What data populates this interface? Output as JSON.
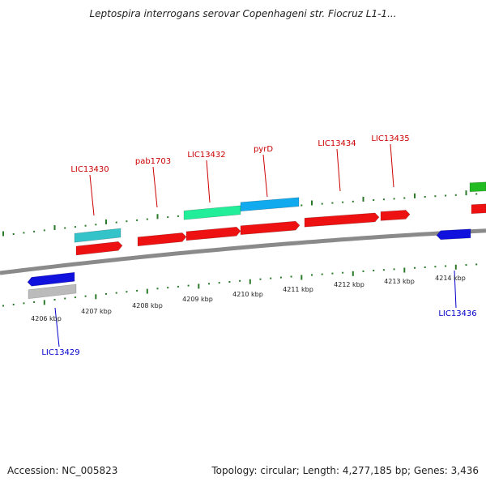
{
  "title": "Leptospira interrogans serovar Copenhageni str. Fiocruz L1-1...",
  "footer": {
    "accession": "Accession: NC_005823",
    "topology": "Topology: circular; Length: 4,277,185 bp; Genes: 3,436"
  },
  "colors": {
    "backbone": "#8a8a8a",
    "tick": "#2a7a2a",
    "forward_label": "#cc0000",
    "reverse_label": "#0000cc",
    "cds": "#ee1111",
    "teal": "#33c3c9",
    "aqua_green": "#22ee99",
    "sky_blue": "#11aaee",
    "blue": "#1111dd",
    "grey": "#bbbbbb",
    "green": "#22bb22"
  },
  "scale_labels": [
    "4206 kbp",
    "4207 kbp",
    "4208 kbp",
    "4209 kbp",
    "4210 kbp",
    "4211 kbp",
    "4212 kbp",
    "4213 kbp",
    "4214 kbp"
  ],
  "gene_labels": {
    "forward": [
      "LIC13430",
      "pab1703",
      "LIC13432",
      "pyrD",
      "LIC13434",
      "LIC13435"
    ],
    "reverse": [
      "LIC13429",
      "LIC13436"
    ]
  }
}
